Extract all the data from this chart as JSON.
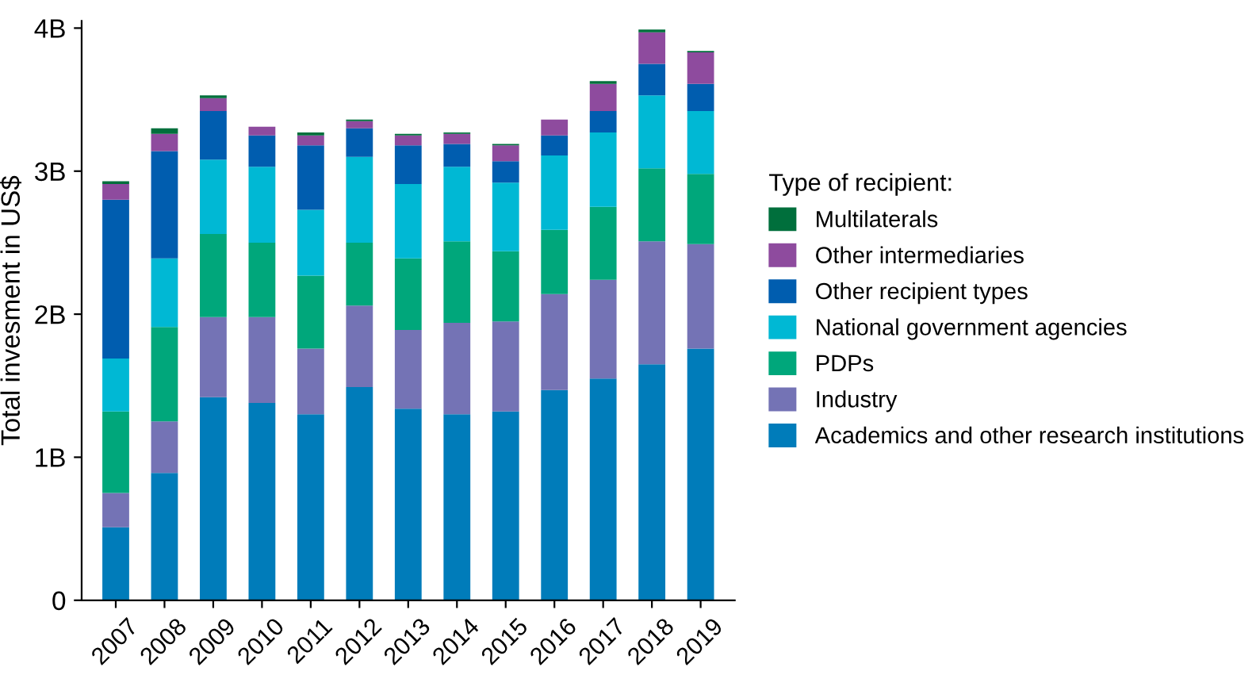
{
  "chart_data": {
    "type": "bar",
    "stacked": true,
    "ylabel": "Total invesment in US$",
    "legend_title": "Type of recipient:",
    "legend": "right",
    "grid": false,
    "categories": [
      "2007",
      "2008",
      "2009",
      "2010",
      "2011",
      "2012",
      "2013",
      "2014",
      "2015",
      "2016",
      "2017",
      "2018",
      "2019"
    ],
    "ylim": [
      0,
      4.05
    ],
    "yticks": [
      0,
      {
        "value": 1,
        "label": "1B"
      },
      {
        "value": 2,
        "label": "2B"
      },
      {
        "value": 3,
        "label": "3B"
      },
      {
        "value": 4,
        "label": "4B"
      }
    ],
    "series": [
      {
        "name": "Academics and other research institutions",
        "color": "#007cba",
        "values": [
          0.51,
          0.89,
          1.42,
          1.38,
          1.3,
          1.49,
          1.34,
          1.3,
          1.32,
          1.47,
          1.55,
          1.65,
          1.76
        ]
      },
      {
        "name": "Industry",
        "color": "#7473b5",
        "values": [
          0.24,
          0.36,
          0.56,
          0.6,
          0.46,
          0.57,
          0.55,
          0.64,
          0.63,
          0.67,
          0.69,
          0.86,
          0.73
        ]
      },
      {
        "name": "PDPs",
        "color": "#00a77b",
        "values": [
          0.57,
          0.66,
          0.58,
          0.52,
          0.51,
          0.44,
          0.5,
          0.57,
          0.49,
          0.45,
          0.51,
          0.51,
          0.49
        ]
      },
      {
        "name": "National government agencies",
        "color": "#00b8d4",
        "values": [
          0.37,
          0.48,
          0.52,
          0.53,
          0.46,
          0.6,
          0.52,
          0.52,
          0.48,
          0.52,
          0.52,
          0.51,
          0.44
        ]
      },
      {
        "name": "Other recipient types",
        "color": "#005daf",
        "values": [
          1.11,
          0.75,
          0.34,
          0.22,
          0.45,
          0.2,
          0.27,
          0.16,
          0.15,
          0.14,
          0.15,
          0.22,
          0.19
        ]
      },
      {
        "name": "Other intermediaries",
        "color": "#8e4b9e",
        "values": [
          0.11,
          0.12,
          0.09,
          0.06,
          0.07,
          0.05,
          0.07,
          0.07,
          0.11,
          0.11,
          0.19,
          0.22,
          0.22
        ]
      },
      {
        "name": "Multilaterals",
        "color": "#006f3c",
        "values": [
          0.02,
          0.04,
          0.02,
          0,
          0.02,
          0.01,
          0.01,
          0.01,
          0.01,
          0,
          0.02,
          0.02,
          0.01
        ]
      }
    ]
  }
}
